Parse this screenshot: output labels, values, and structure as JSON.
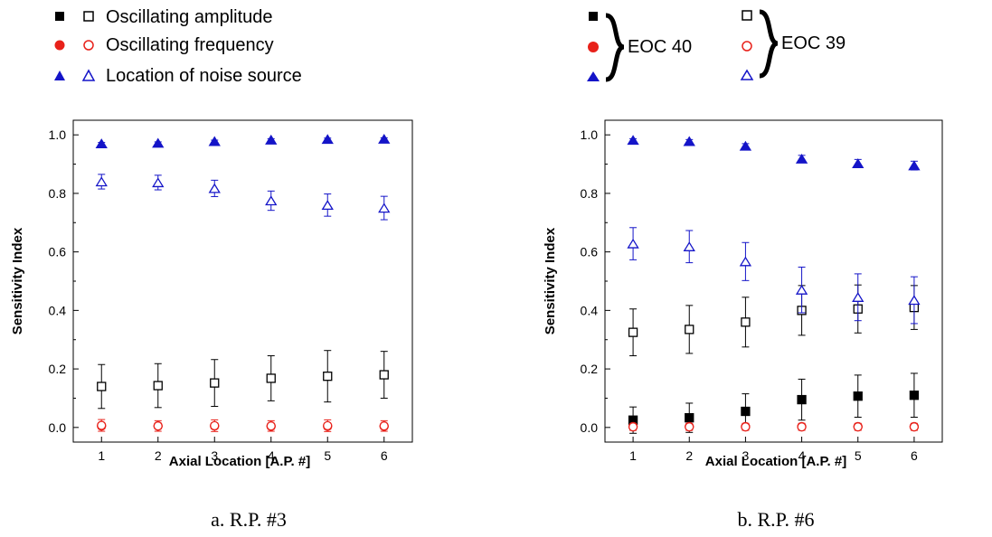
{
  "legend_left": [
    {
      "label": "Oscillating amplitude",
      "filled": "square",
      "open": "square",
      "color": "#000000"
    },
    {
      "label": "Oscillating frequency",
      "filled": "circle",
      "open": "circle",
      "color": "#e8211a"
    },
    {
      "label": "Location of noise source",
      "filled": "triangle",
      "open": "triangle",
      "color": "#1414c8"
    }
  ],
  "legend_right": {
    "filled_group_label": "EOC 40",
    "open_group_label": "EOC 39"
  },
  "colors": {
    "amplitude": "#000000",
    "frequency": "#e8211a",
    "location": "#1414c8"
  },
  "chart_data": [
    {
      "type": "scatter",
      "caption": "a. R.P. #3",
      "xlabel": "Axial Location [A.P. #]",
      "ylabel": "Sensitivity Index",
      "x": [
        1,
        2,
        3,
        4,
        5,
        6
      ],
      "xlim": [
        0.5,
        6.5
      ],
      "ylim": [
        -0.05,
        1.05
      ],
      "yticks": [
        0.0,
        0.2,
        0.4,
        0.6,
        0.8,
        1.0
      ],
      "series": [
        {
          "key": "amp39",
          "group": "EOC 39",
          "marker": "square",
          "filled": false,
          "color": "#000000",
          "values": [
            0.14,
            0.143,
            0.152,
            0.168,
            0.175,
            0.18
          ],
          "err": [
            0.075,
            0.075,
            0.08,
            0.077,
            0.088,
            0.08
          ]
        },
        {
          "key": "freq40",
          "group": "EOC 40",
          "marker": "circle",
          "filled": true,
          "color": "#e8211a",
          "values": [
            0.005,
            0.005,
            0.005,
            0.004,
            0.004,
            0.004
          ],
          "err": [
            0.01,
            0.01,
            0.01,
            0.01,
            0.01,
            0.01
          ]
        },
        {
          "key": "freq39",
          "group": "EOC 39",
          "marker": "circle",
          "filled": false,
          "color": "#e8211a",
          "values": [
            0.007,
            0.005,
            0.006,
            0.005,
            0.006,
            0.005
          ],
          "err": [
            0.02,
            0.018,
            0.02,
            0.018,
            0.02,
            0.018
          ]
        },
        {
          "key": "loc40",
          "group": "EOC 40",
          "marker": "triangle",
          "filled": true,
          "color": "#1414c8",
          "values": [
            0.97,
            0.972,
            0.978,
            0.983,
            0.985,
            0.986
          ],
          "err": [
            0.004,
            0.004,
            0.004,
            0.004,
            0.004,
            0.004
          ]
        },
        {
          "key": "loc39",
          "group": "EOC 39",
          "marker": "triangle",
          "filled": false,
          "color": "#1414c8",
          "values": [
            0.84,
            0.837,
            0.817,
            0.775,
            0.76,
            0.75
          ],
          "err": [
            0.025,
            0.025,
            0.028,
            0.033,
            0.038,
            0.04
          ]
        }
      ]
    },
    {
      "type": "scatter",
      "caption": "b. R.P. #6",
      "xlabel": "Axial Location [A.P. #]",
      "ylabel": "Sensitivity Index",
      "x": [
        1,
        2,
        3,
        4,
        5,
        6
      ],
      "xlim": [
        0.5,
        6.5
      ],
      "ylim": [
        -0.05,
        1.05
      ],
      "yticks": [
        0.0,
        0.2,
        0.4,
        0.6,
        0.8,
        1.0
      ],
      "series": [
        {
          "key": "amp40",
          "group": "EOC 40",
          "marker": "square",
          "filled": true,
          "color": "#000000",
          "values": [
            0.025,
            0.033,
            0.055,
            0.095,
            0.107,
            0.11
          ],
          "err": [
            0.045,
            0.05,
            0.06,
            0.07,
            0.072,
            0.075
          ]
        },
        {
          "key": "amp39",
          "group": "EOC 39",
          "marker": "square",
          "filled": false,
          "color": "#000000",
          "values": [
            0.325,
            0.335,
            0.36,
            0.4,
            0.405,
            0.41
          ],
          "err": [
            0.08,
            0.082,
            0.085,
            0.085,
            0.082,
            0.075
          ]
        },
        {
          "key": "freq40",
          "group": "EOC 40",
          "marker": "circle",
          "filled": true,
          "color": "#e8211a",
          "values": [
            0.003,
            0.003,
            0.003,
            0.003,
            0.003,
            0.003
          ],
          "err": [
            0.008,
            0.008,
            0.008,
            0.008,
            0.008,
            0.008
          ]
        },
        {
          "key": "freq39",
          "group": "EOC 39",
          "marker": "circle",
          "filled": false,
          "color": "#e8211a",
          "values": [
            0.002,
            0.002,
            0.002,
            0.002,
            0.002,
            0.002
          ],
          "err": [
            0.012,
            0.012,
            0.012,
            0.012,
            0.012,
            0.012
          ]
        },
        {
          "key": "loc40",
          "group": "EOC 40",
          "marker": "triangle",
          "filled": true,
          "color": "#1414c8",
          "values": [
            0.982,
            0.978,
            0.962,
            0.918,
            0.902,
            0.895
          ],
          "err": [
            0.005,
            0.006,
            0.008,
            0.012,
            0.014,
            0.015
          ]
        },
        {
          "key": "loc39",
          "group": "EOC 39",
          "marker": "triangle",
          "filled": false,
          "color": "#1414c8",
          "values": [
            0.628,
            0.618,
            0.567,
            0.47,
            0.445,
            0.435
          ],
          "err": [
            0.055,
            0.055,
            0.065,
            0.078,
            0.08,
            0.08
          ]
        }
      ]
    }
  ]
}
